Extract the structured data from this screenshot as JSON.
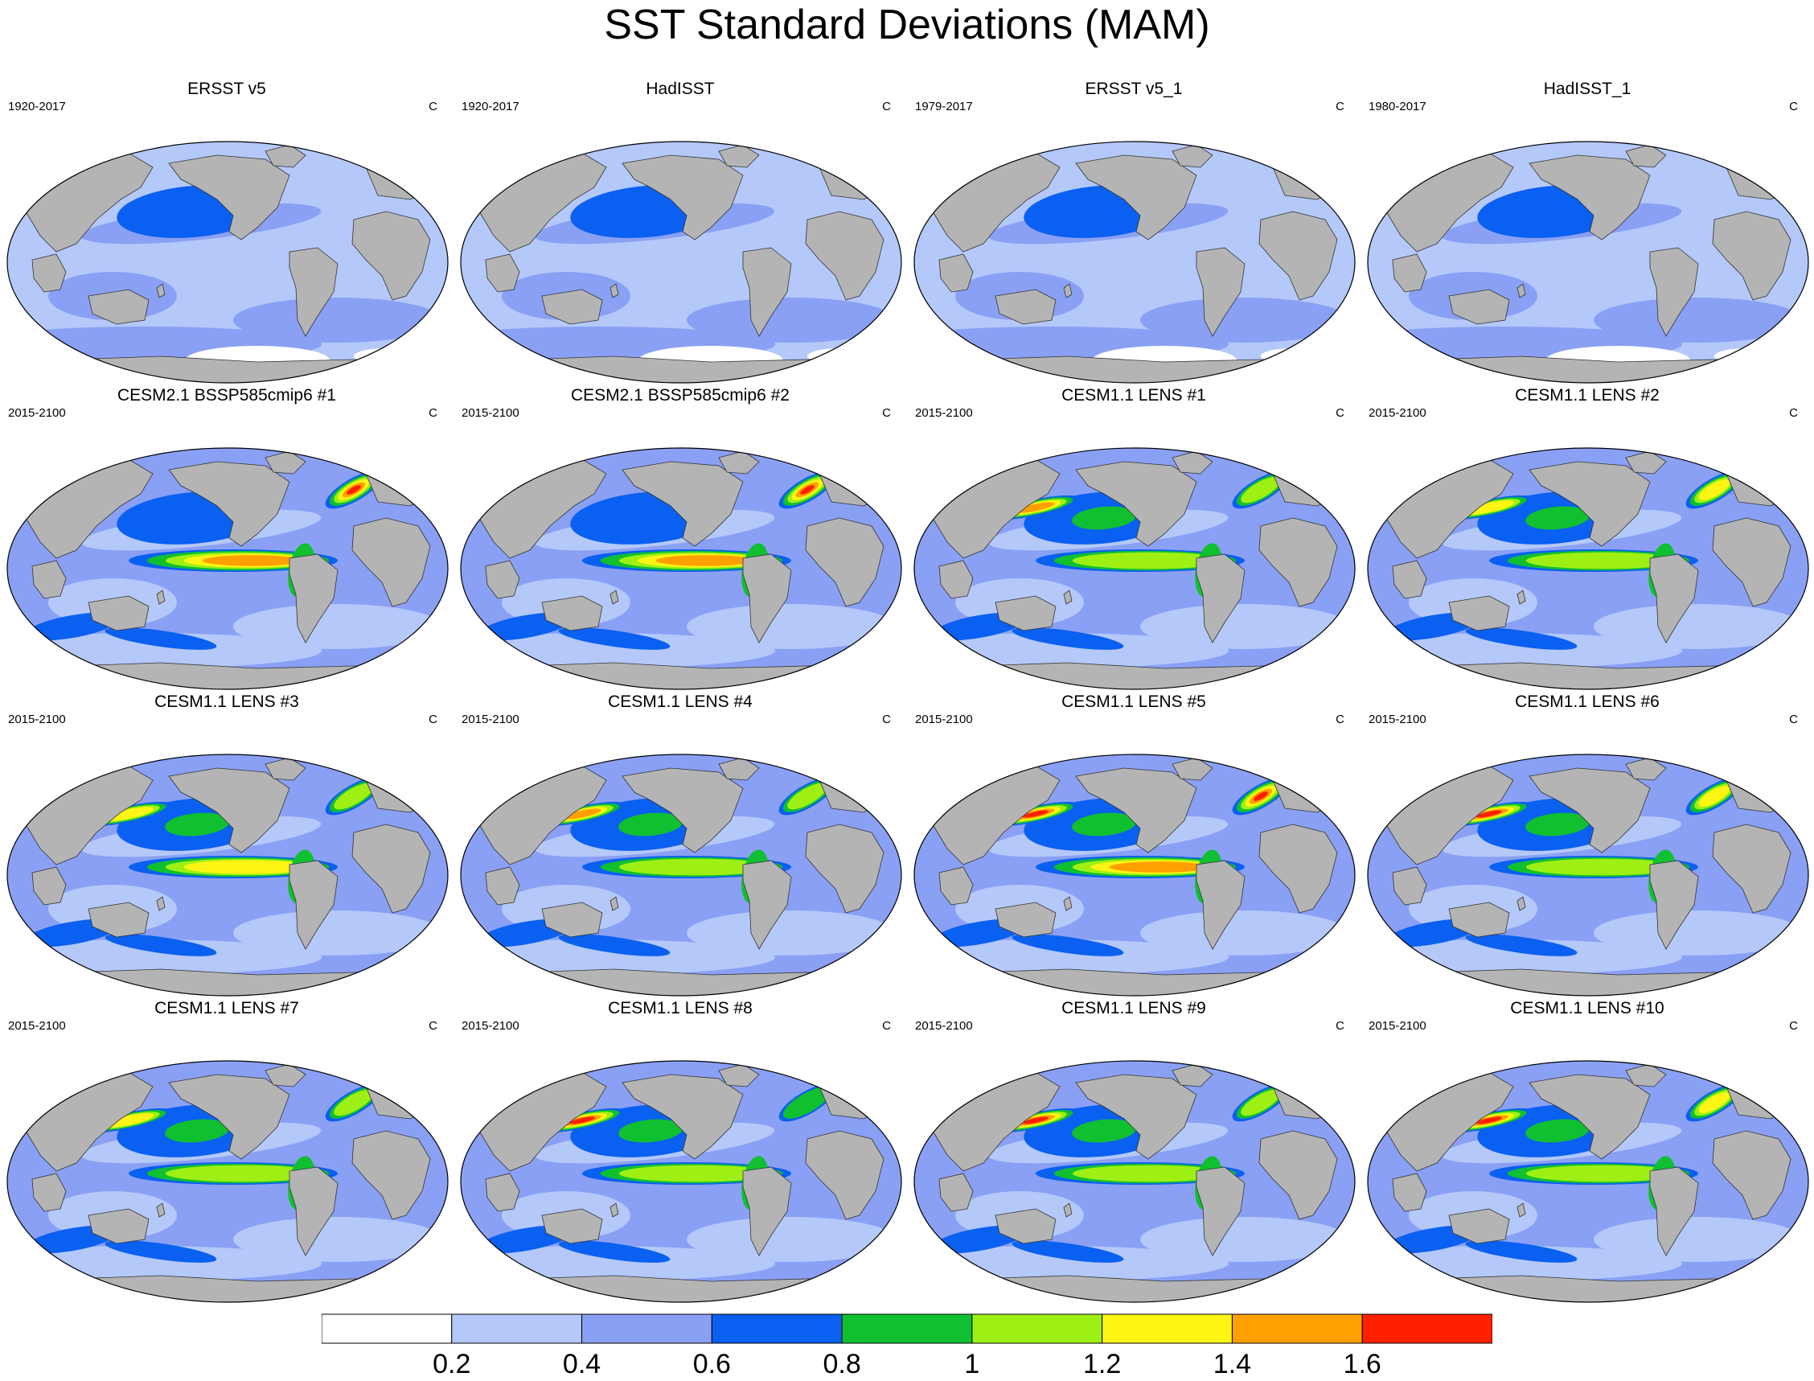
{
  "title": "SST Standard Deviations (MAM)",
  "units": "C",
  "colors": {
    "land": "#b4b4b4",
    "levels": [
      "#ffffff",
      "#b4c8fa",
      "#8aa0f5",
      "#0a60f0",
      "#10c030",
      "#9ef014",
      "#fff514",
      "#ffa000",
      "#ff2000"
    ]
  },
  "colorbar": {
    "labels": [
      "0.2",
      "0.4",
      "0.6",
      "0.8",
      "1",
      "1.2",
      "1.4",
      "1.6"
    ],
    "colors": [
      "#ffffff",
      "#b4c8fa",
      "#8aa0f5",
      "#0a60f0",
      "#10c030",
      "#9ef014",
      "#fff514",
      "#ffa000",
      "#ff2000"
    ]
  },
  "panels": [
    {
      "title": "ERSST v5",
      "period": "1920-2017",
      "units": "C",
      "kind": "obs",
      "enso": 2,
      "kuro": 1,
      "nat": 2,
      "south": 0
    },
    {
      "title": "HadISST",
      "period": "1920-2017",
      "units": "C",
      "kind": "obs",
      "enso": 1,
      "kuro": 1,
      "nat": 1,
      "south": 0
    },
    {
      "title": "ERSST v5_1",
      "period": "1979-2017",
      "units": "C",
      "kind": "obs",
      "enso": 2,
      "kuro": 1,
      "nat": 1,
      "south": 0
    },
    {
      "title": "HadISST_1",
      "period": "1980-2017",
      "units": "C",
      "kind": "obs",
      "enso": 2,
      "kuro": 1,
      "nat": 2,
      "south": 0
    },
    {
      "title": "CESM2.1 BSSP585cmip6 #1",
      "period": "2015-2100",
      "units": "C",
      "kind": "cesm2",
      "enso": 7,
      "kuro": 2,
      "nat": 8,
      "south": 1
    },
    {
      "title": "CESM2.1 BSSP585cmip6 #2",
      "period": "2015-2100",
      "units": "C",
      "kind": "cesm2",
      "enso": 7,
      "kuro": 2,
      "nat": 8,
      "south": 1
    },
    {
      "title": "CESM1.1 LENS #1",
      "period": "2015-2100",
      "units": "C",
      "kind": "lens",
      "enso": 5,
      "kuro": 7,
      "nat": 5,
      "south": 1
    },
    {
      "title": "CESM1.1 LENS #2",
      "period": "2015-2100",
      "units": "C",
      "kind": "lens",
      "enso": 5,
      "kuro": 6,
      "nat": 6,
      "south": 1
    },
    {
      "title": "CESM1.1 LENS #3",
      "period": "2015-2100",
      "units": "C",
      "kind": "lens",
      "enso": 6,
      "kuro": 6,
      "nat": 5,
      "south": 1
    },
    {
      "title": "CESM1.1 LENS #4",
      "period": "2015-2100",
      "units": "C",
      "kind": "lens",
      "enso": 5,
      "kuro": 7,
      "nat": 5,
      "south": 1
    },
    {
      "title": "CESM1.1 LENS #5",
      "period": "2015-2100",
      "units": "C",
      "kind": "lens",
      "enso": 7,
      "kuro": 8,
      "nat": 8,
      "south": 1
    },
    {
      "title": "CESM1.1 LENS #6",
      "period": "2015-2100",
      "units": "C",
      "kind": "lens",
      "enso": 5,
      "kuro": 8,
      "nat": 6,
      "south": 1
    },
    {
      "title": "CESM1.1 LENS #7",
      "period": "2015-2100",
      "units": "C",
      "kind": "lens",
      "enso": 5,
      "kuro": 6,
      "nat": 5,
      "south": 1
    },
    {
      "title": "CESM1.1 LENS #8",
      "period": "2015-2100",
      "units": "C",
      "kind": "lens",
      "enso": 5,
      "kuro": 8,
      "nat": 4,
      "south": 1
    },
    {
      "title": "CESM1.1 LENS #9",
      "period": "2015-2100",
      "units": "C",
      "kind": "lens",
      "enso": 5,
      "kuro": 8,
      "nat": 5,
      "south": 1
    },
    {
      "title": "CESM1.1 LENS #10",
      "period": "2015-2100",
      "units": "C",
      "kind": "lens",
      "enso": 5,
      "kuro": 8,
      "nat": 6,
      "south": 1
    }
  ]
}
